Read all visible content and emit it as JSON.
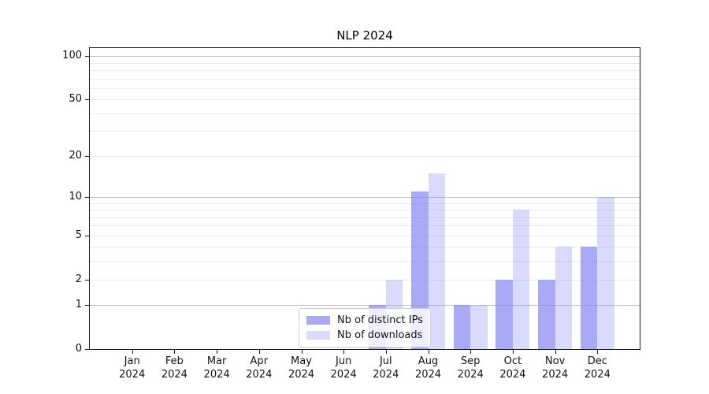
{
  "chart_data": {
    "type": "bar",
    "title": "NLP 2024",
    "categories": [
      "Jan 2024",
      "Feb 2024",
      "Mar 2024",
      "Apr 2024",
      "May 2024",
      "Jun 2024",
      "Jul 2024",
      "Aug 2024",
      "Sep 2024",
      "Oct 2024",
      "Nov 2024",
      "Dec 2024"
    ],
    "series": [
      {
        "name": "Nb of distinct IPs",
        "color": "rgba(132,132,244,0.7)",
        "values": [
          0,
          0,
          0,
          0,
          0,
          0,
          1,
          11,
          1,
          2,
          2,
          4
        ]
      },
      {
        "name": "Nb of downloads",
        "color": "rgba(132,132,244,0.3)",
        "values": [
          0,
          0,
          0,
          0,
          0,
          0,
          2,
          15,
          1,
          8,
          4,
          10
        ]
      }
    ],
    "y_scale": "log10(value+1)",
    "y_ticks": [
      0,
      1,
      2,
      5,
      10,
      20,
      50,
      100
    ],
    "y_major_gridlines": [
      1,
      10,
      100
    ],
    "y_minor_gridlines": [
      2,
      3,
      4,
      5,
      6,
      7,
      8,
      9,
      20,
      30,
      40,
      50,
      60,
      70,
      80,
      90
    ],
    "y_top_log": 2.06,
    "xlabel": "",
    "ylabel": "",
    "grid": true,
    "legend_position": "lower center",
    "colors": {
      "bar_base": "#8484f4",
      "major_grid": "#c3c3c3",
      "minor_grid": "#ebebeb",
      "spine": "#1a1a1a"
    }
  }
}
